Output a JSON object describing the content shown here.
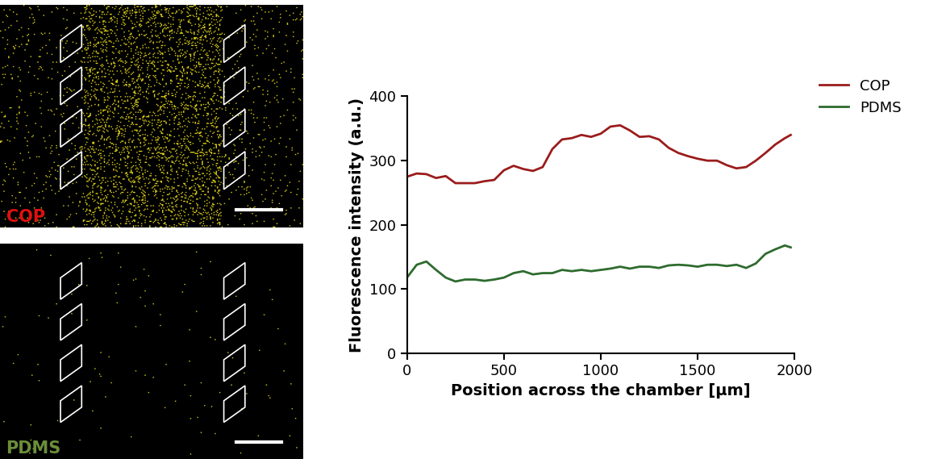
{
  "chart_data": {
    "type": "line",
    "x_label": "Position across the chamber [μm]",
    "y_label": "Fluorescence intensity (a.u.)",
    "x": [
      0,
      50,
      100,
      150,
      200,
      250,
      300,
      350,
      400,
      450,
      500,
      550,
      600,
      650,
      700,
      750,
      800,
      850,
      900,
      950,
      1000,
      1050,
      1100,
      1150,
      1200,
      1250,
      1300,
      1350,
      1400,
      1450,
      1500,
      1550,
      1600,
      1650,
      1700,
      1750,
      1800,
      1850,
      1900,
      1950,
      1980
    ],
    "series": [
      {
        "name": "COP",
        "color": "#9b1c1c",
        "values": [
          275,
          280,
          279,
          273,
          276,
          265,
          265,
          265,
          268,
          270,
          285,
          292,
          287,
          284,
          290,
          318,
          333,
          335,
          340,
          337,
          342,
          353,
          355,
          347,
          337,
          338,
          333,
          320,
          312,
          307,
          303,
          300,
          300,
          293,
          288,
          290,
          300,
          312,
          325,
          335,
          340
        ]
      },
      {
        "name": "PDMS",
        "color": "#2e6b2e",
        "values": [
          118,
          138,
          143,
          130,
          118,
          112,
          115,
          115,
          113,
          115,
          118,
          125,
          128,
          123,
          125,
          125,
          130,
          128,
          130,
          128,
          130,
          132,
          135,
          132,
          135,
          135,
          133,
          137,
          138,
          137,
          135,
          138,
          138,
          136,
          138,
          133,
          140,
          155,
          162,
          168,
          165
        ]
      }
    ],
    "xlim": [
      0,
      2000
    ],
    "xticks": [
      0,
      500,
      1000,
      1500,
      2000
    ],
    "ylim": [
      0,
      400
    ],
    "yticks": [
      0,
      100,
      200,
      300,
      400
    ],
    "grid": false,
    "legend": "upper left"
  },
  "panels": [
    {
      "label": "COP",
      "color": "#e01010"
    },
    {
      "label": "PDMS",
      "color": "#6b8e3a"
    }
  ]
}
